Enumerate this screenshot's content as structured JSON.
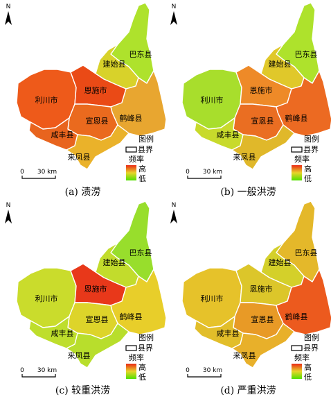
{
  "regions": [
    {
      "key": "bdx",
      "label": "巴东县"
    },
    {
      "key": "jsx",
      "label": "建始县"
    },
    {
      "key": "lcs",
      "label": "利川市"
    },
    {
      "key": "ess",
      "label": "恩施市"
    },
    {
      "key": "hfx",
      "label": "鹤峰县"
    },
    {
      "key": "xex",
      "label": "宣恩县"
    },
    {
      "key": "xfx",
      "label": "咸丰县"
    },
    {
      "key": "lfx",
      "label": "来凤县"
    }
  ],
  "panels": [
    {
      "caption": "(a) 渍涝",
      "colors": {
        "bdx": "#aee22c",
        "jsx": "#d8d22a",
        "lcs": "#ee5a1a",
        "ess": "#ea4a16",
        "hfx": "#e8a630",
        "xex": "#ea6a1e",
        "xfx": "#e8641e",
        "lfx": "#eab22a"
      }
    },
    {
      "caption": "(b) 一般洪涝",
      "colors": {
        "bdx": "#aee22c",
        "jsx": "#e0c82a",
        "lcs": "#a8de2c",
        "ess": "#ee8a28",
        "hfx": "#ec6a22",
        "xex": "#ea6e22",
        "xfx": "#c8da2c",
        "lfx": "#e0b82a"
      }
    },
    {
      "caption": "(c) 较重洪涝",
      "colors": {
        "bdx": "#98de2c",
        "jsx": "#c2dc2c",
        "lcs": "#cadc2c",
        "ess": "#e8381a",
        "hfx": "#e8ce2a",
        "xex": "#ddd42a",
        "xfx": "#bede2c",
        "lfx": "#b8de2c"
      }
    },
    {
      "caption": "(d) 严重洪涝",
      "colors": {
        "bdx": "#e4b82a",
        "jsx": "#d4d02a",
        "lcs": "#e6c22a",
        "ess": "#dcc62a",
        "hfx": "#ec5a1e",
        "xex": "#e89a26",
        "xfx": "#e2be2a",
        "lfx": "#e8b02a"
      }
    }
  ],
  "legend": {
    "title": "图例",
    "boundary": "县界",
    "frequency": "频率",
    "high": "高",
    "low": "低"
  },
  "north_arrow": "N",
  "scale": {
    "zero": "0",
    "distance": "30 km"
  },
  "colors": {
    "ramp_high": "#ea2a16",
    "ramp_mid": "#e8d42a",
    "ramp_low": "#52e000",
    "boundary": "#ffffff"
  }
}
